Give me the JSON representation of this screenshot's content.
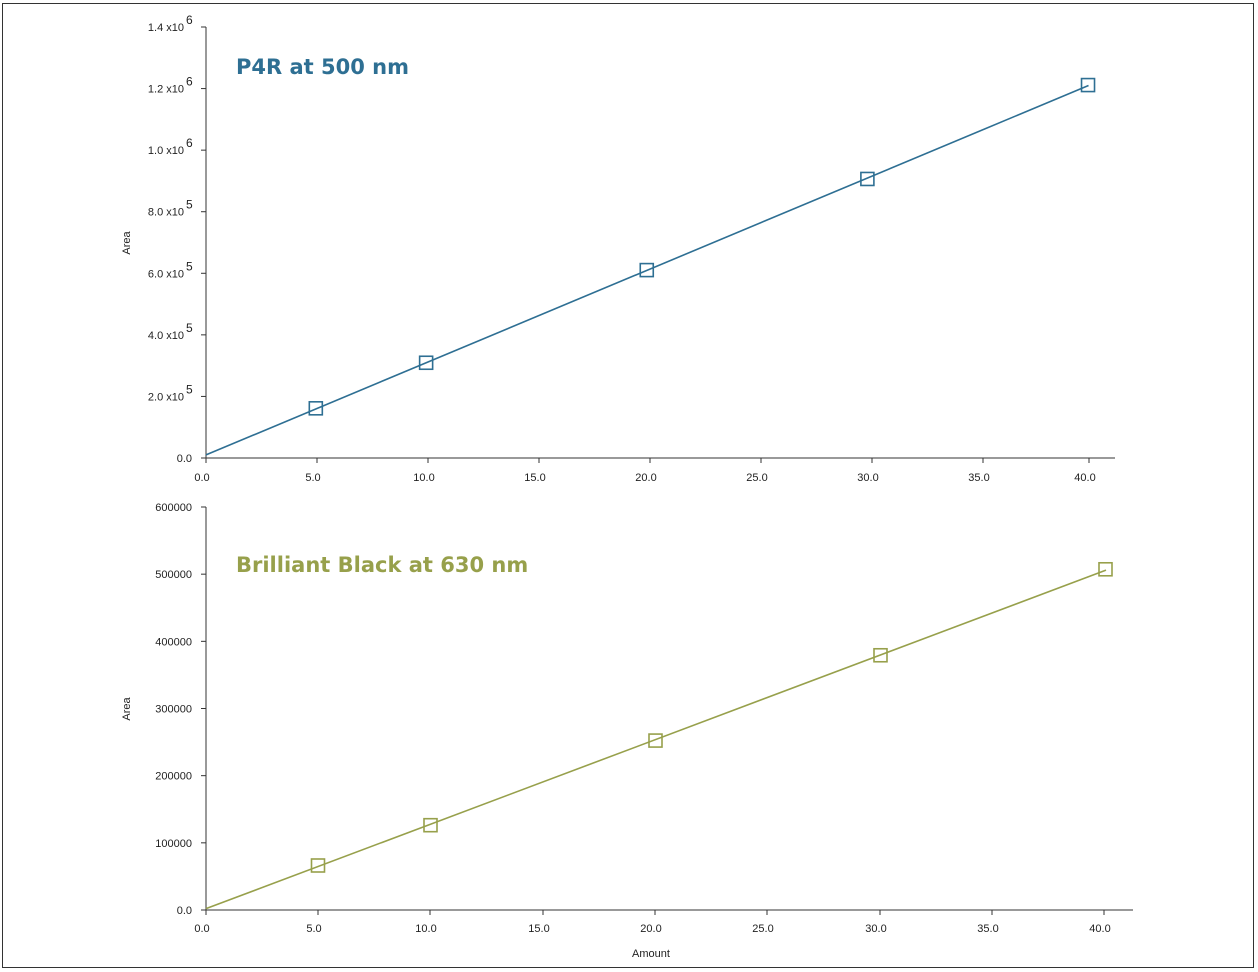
{
  "chart_data": [
    {
      "type": "scatter",
      "title": "P4R at 500 nm",
      "xlabel": "",
      "ylabel": "Area",
      "xlim": [
        0,
        41.2
      ],
      "ylim": [
        0,
        1400000
      ],
      "x_ticks": [
        "0.0",
        "5.0",
        "10.0",
        "15.0",
        "20.0",
        "25.0",
        "30.0",
        "35.0",
        "40.0"
      ],
      "y_ticks": [
        {
          "mantissa": "0.0",
          "exp": ""
        },
        {
          "mantissa": "2.0 x10",
          "exp": "5"
        },
        {
          "mantissa": "4.0 x10",
          "exp": "5"
        },
        {
          "mantissa": "6.0 x10",
          "exp": "5"
        },
        {
          "mantissa": "8.0 x10",
          "exp": "5"
        },
        {
          "mantissa": "1.0 x10",
          "exp": "6"
        },
        {
          "mantissa": "1.2 x10",
          "exp": "6"
        },
        {
          "mantissa": "1.4 x10",
          "exp": "6"
        }
      ],
      "series": [
        {
          "x": [
            5,
            10,
            20,
            30,
            40
          ],
          "y": [
            163000,
            311000,
            612000,
            908000,
            1213000
          ],
          "fit_line": {
            "intercept": 10000,
            "slope": 30000
          }
        }
      ],
      "color": "#2e6f93",
      "grid": false
    },
    {
      "type": "scatter",
      "title": "Brilliant Black at 630 nm",
      "xlabel": "Amount",
      "ylabel": "Area",
      "xlim": [
        0,
        41.2
      ],
      "ylim": [
        0,
        600000
      ],
      "x_ticks": [
        "0.0",
        "5.0",
        "10.0",
        "15.0",
        "20.0",
        "25.0",
        "30.0",
        "35.0",
        "40.0"
      ],
      "y_ticks": [
        {
          "mantissa": "0.0",
          "exp": ""
        },
        {
          "mantissa": "100000",
          "exp": ""
        },
        {
          "mantissa": "200000",
          "exp": ""
        },
        {
          "mantissa": "300000",
          "exp": ""
        },
        {
          "mantissa": "400000",
          "exp": ""
        },
        {
          "mantissa": "500000",
          "exp": ""
        },
        {
          "mantissa": "600000",
          "exp": ""
        }
      ],
      "series": [
        {
          "x": [
            5,
            10,
            20,
            30,
            40
          ],
          "y": [
            67000,
            127000,
            253000,
            380000,
            508000
          ],
          "fit_line": {
            "intercept": 2000,
            "slope": 12600
          }
        }
      ],
      "color": "#97a04b",
      "grid": false
    }
  ]
}
